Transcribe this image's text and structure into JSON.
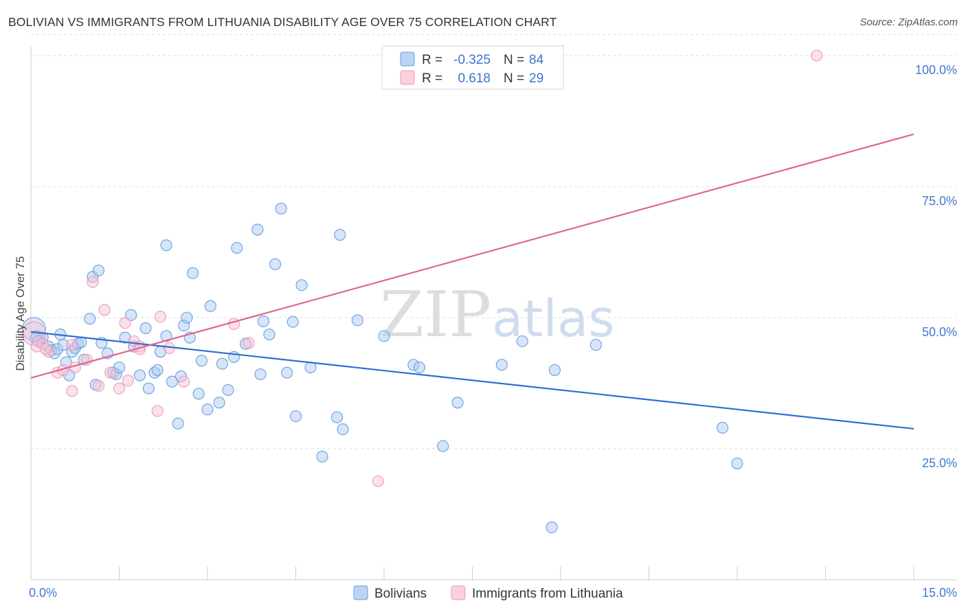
{
  "chart_data": {
    "type": "scatter",
    "title": "BOLIVIAN VS IMMIGRANTS FROM LITHUANIA DISABILITY AGE OVER 75 CORRELATION CHART",
    "source": "Source: ZipAtlas.com",
    "ylabel": "Disability Age Over 75",
    "xlabel": "",
    "xlim": [
      0,
      15
    ],
    "ylim": [
      0,
      104
    ],
    "x_tick_labels": [
      {
        "value": 0,
        "label": "0.0%"
      },
      {
        "value": 15,
        "label": "15.0%"
      }
    ],
    "y_tick_labels": [
      {
        "value": 25,
        "label": "25.0%"
      },
      {
        "value": 50,
        "label": "50.0%"
      },
      {
        "value": 75,
        "label": "75.0%"
      },
      {
        "value": 100,
        "label": "100.0%"
      }
    ],
    "watermark": {
      "part1": "ZIP",
      "part2": "atlas"
    },
    "legend": {
      "r_label": "R =",
      "n_label": "N =",
      "entries": [
        {
          "r": "-0.325",
          "n": "84"
        },
        {
          "r": "0.618",
          "n": "29"
        }
      ]
    },
    "series": [
      {
        "name": "Bolivians",
        "color": "#6a9ee0",
        "fill": "#aecbf0",
        "line_color": "#2d6fd4",
        "trend": {
          "x": [
            0,
            15
          ],
          "y": [
            47.3,
            28.8
          ]
        },
        "points": [
          [
            0.05,
            47.8
          ],
          [
            0.1,
            46.5
          ],
          [
            0.15,
            45.8
          ],
          [
            0.2,
            46.2
          ],
          [
            0.3,
            44.5
          ],
          [
            0.35,
            43.8
          ],
          [
            0.4,
            43.2
          ],
          [
            0.45,
            44.0
          ],
          [
            0.5,
            46.8
          ],
          [
            0.55,
            44.8
          ],
          [
            0.6,
            41.5
          ],
          [
            0.65,
            39.0
          ],
          [
            0.7,
            43.5
          ],
          [
            0.75,
            44.2
          ],
          [
            0.8,
            45.0
          ],
          [
            0.85,
            45.3
          ],
          [
            0.9,
            42.0
          ],
          [
            1.0,
            49.8
          ],
          [
            1.05,
            57.8
          ],
          [
            1.1,
            37.2
          ],
          [
            1.15,
            59.0
          ],
          [
            1.2,
            45.2
          ],
          [
            1.3,
            43.2
          ],
          [
            1.4,
            39.5
          ],
          [
            1.45,
            39.2
          ],
          [
            1.5,
            40.5
          ],
          [
            1.6,
            46.2
          ],
          [
            1.7,
            50.5
          ],
          [
            1.75,
            44.5
          ],
          [
            1.85,
            39.0
          ],
          [
            1.95,
            48.0
          ],
          [
            2.0,
            36.5
          ],
          [
            2.1,
            39.5
          ],
          [
            2.15,
            40.0
          ],
          [
            2.2,
            43.5
          ],
          [
            2.3,
            46.5
          ],
          [
            2.3,
            63.8
          ],
          [
            2.4,
            37.8
          ],
          [
            2.5,
            29.8
          ],
          [
            2.55,
            38.8
          ],
          [
            2.6,
            48.5
          ],
          [
            2.65,
            50.0
          ],
          [
            2.7,
            46.2
          ],
          [
            2.75,
            58.5
          ],
          [
            2.85,
            35.5
          ],
          [
            2.9,
            41.8
          ],
          [
            3.0,
            32.5
          ],
          [
            3.05,
            52.2
          ],
          [
            3.2,
            33.8
          ],
          [
            3.25,
            41.2
          ],
          [
            3.35,
            36.2
          ],
          [
            3.45,
            42.5
          ],
          [
            3.5,
            63.3
          ],
          [
            3.65,
            45.0
          ],
          [
            3.85,
            66.8
          ],
          [
            3.9,
            39.2
          ],
          [
            3.95,
            49.3
          ],
          [
            4.05,
            46.8
          ],
          [
            4.15,
            60.2
          ],
          [
            4.25,
            70.8
          ],
          [
            4.35,
            39.5
          ],
          [
            4.45,
            49.2
          ],
          [
            4.5,
            31.2
          ],
          [
            4.6,
            56.2
          ],
          [
            4.75,
            40.5
          ],
          [
            4.95,
            23.5
          ],
          [
            5.2,
            31.0
          ],
          [
            5.25,
            65.8
          ],
          [
            5.3,
            28.7
          ],
          [
            5.55,
            49.5
          ],
          [
            6.0,
            46.5
          ],
          [
            6.5,
            41.0
          ],
          [
            6.6,
            40.5
          ],
          [
            7.0,
            25.5
          ],
          [
            7.25,
            33.8
          ],
          [
            8.0,
            41.0
          ],
          [
            8.35,
            45.5
          ],
          [
            8.85,
            10.0
          ],
          [
            8.9,
            40.0
          ],
          [
            9.6,
            44.8
          ],
          [
            11.75,
            29.0
          ],
          [
            12.0,
            22.2
          ],
          [
            0.08,
            46.0
          ],
          [
            0.12,
            45.5
          ]
        ]
      },
      {
        "name": "Immigrants from Lithuania",
        "color": "#ee9ab8",
        "fill": "#f8c4d6",
        "line_color": "#e0658f",
        "trend": {
          "x": [
            0,
            15
          ],
          "y": [
            38.5,
            85.0
          ]
        },
        "points": [
          [
            0.05,
            47.0
          ],
          [
            0.1,
            44.5
          ],
          [
            0.2,
            45.0
          ],
          [
            0.3,
            43.5
          ],
          [
            0.45,
            39.5
          ],
          [
            0.55,
            40.0
          ],
          [
            0.7,
            36.0
          ],
          [
            0.7,
            44.8
          ],
          [
            0.75,
            40.5
          ],
          [
            0.95,
            42.0
          ],
          [
            1.05,
            56.8
          ],
          [
            1.15,
            37.0
          ],
          [
            1.25,
            51.5
          ],
          [
            1.35,
            39.5
          ],
          [
            1.5,
            36.5
          ],
          [
            1.6,
            49.0
          ],
          [
            1.65,
            38.0
          ],
          [
            1.75,
            45.5
          ],
          [
            1.85,
            44.5
          ],
          [
            1.85,
            44.0
          ],
          [
            2.15,
            32.2
          ],
          [
            2.2,
            50.2
          ],
          [
            2.35,
            44.2
          ],
          [
            2.6,
            37.8
          ],
          [
            3.45,
            48.8
          ],
          [
            3.7,
            45.2
          ],
          [
            5.9,
            18.8
          ],
          [
            13.35,
            100.0
          ],
          [
            0.25,
            44.0
          ]
        ]
      }
    ]
  }
}
